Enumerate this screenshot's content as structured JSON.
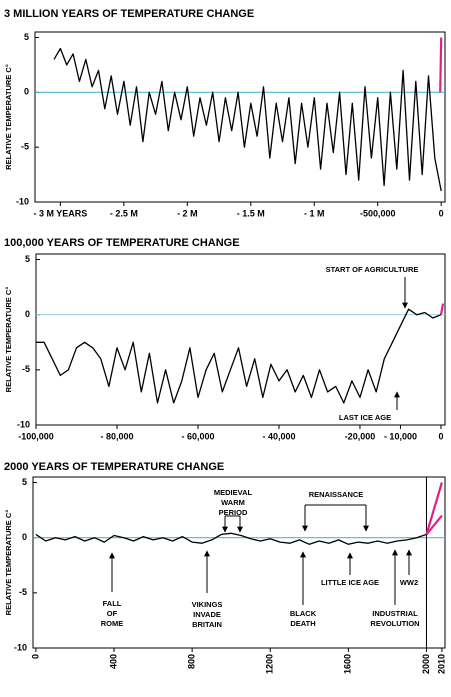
{
  "chart_data": [
    {
      "type": "line",
      "title": "3 MILLION YEARS OF TEMPERATURE CHANGE",
      "ylabel": "RELATIVE TEMPERATURE C°",
      "xlim": [
        -3200000,
        30000
      ],
      "ylim": [
        -10,
        5.5
      ],
      "yticks": [
        5,
        0,
        -5,
        -10
      ],
      "xticks": [
        {
          "value": -3000000,
          "label": "- 3 M YEARS"
        },
        {
          "value": -2500000,
          "label": "- 2.5 M"
        },
        {
          "value": -2000000,
          "label": "- 2 M"
        },
        {
          "value": -1500000,
          "label": "- 1.5 M"
        },
        {
          "value": -1000000,
          "label": "- 1 M"
        },
        {
          "value": -500000,
          "label": "-500,000"
        },
        0
      ],
      "reference_line": 0,
      "reference_color": "#5ab4d6",
      "series": [
        {
          "color": "#000000",
          "x": [
            -3050000,
            -3000000,
            -2950000,
            -2900000,
            -2850000,
            -2800000,
            -2750000,
            -2700000,
            -2650000,
            -2600000,
            -2550000,
            -2500000,
            -2450000,
            -2400000,
            -2350000,
            -2300000,
            -2250000,
            -2200000,
            -2150000,
            -2100000,
            -2050000,
            -2000000,
            -1950000,
            -1900000,
            -1850000,
            -1800000,
            -1750000,
            -1700000,
            -1650000,
            -1600000,
            -1550000,
            -1500000,
            -1450000,
            -1400000,
            -1350000,
            -1300000,
            -1250000,
            -1200000,
            -1150000,
            -1100000,
            -1050000,
            -1000000,
            -950000,
            -900000,
            -850000,
            -800000,
            -750000,
            -700000,
            -650000,
            -600000,
            -550000,
            -500000,
            -450000,
            -400000,
            -350000,
            -300000,
            -250000,
            -200000,
            -150000,
            -100000,
            -50000,
            0
          ],
          "values": [
            3,
            4,
            2.5,
            3.5,
            1,
            3,
            0.5,
            2,
            -1.5,
            1.5,
            -2,
            1,
            -3,
            0.5,
            -4.5,
            0,
            -2,
            1,
            -3.5,
            0,
            -2.5,
            0.5,
            -4,
            -0.5,
            -3,
            0,
            -4.5,
            -0.5,
            -3.5,
            0,
            -5,
            -1,
            -4,
            0.5,
            -6,
            -1,
            -4.5,
            -0.5,
            -6.5,
            -1,
            -5,
            -0.5,
            -7,
            -1,
            -5.5,
            0,
            -7.5,
            -1,
            -8,
            0.5,
            -6,
            -0.5,
            -8.5,
            0,
            -7,
            2,
            -8,
            1,
            -7.5,
            1.5,
            -6,
            -9
          ]
        },
        {
          "color": "#e0208a",
          "x": [
            -8000,
            0
          ],
          "values": [
            0,
            5
          ]
        }
      ]
    },
    {
      "type": "line",
      "title": "100,000 YEARS OF TEMPERATURE CHANGE",
      "ylabel": "RELATIVE TEMPERATURE C°",
      "xlim": [
        -100000,
        1000
      ],
      "ylim": [
        -10,
        5.5
      ],
      "yticks": [
        5,
        0,
        -5,
        -10
      ],
      "xticks": [
        {
          "value": -100000,
          "label": "-100,000"
        },
        {
          "value": -80000,
          "label": "- 80,000"
        },
        {
          "value": -60000,
          "label": "- 60,000"
        },
        {
          "value": -40000,
          "label": "- 40,000"
        },
        {
          "value": -20000,
          "label": "-20,000"
        },
        {
          "value": -10000,
          "label": "- 10,000"
        },
        0
      ],
      "reference_line": 0,
      "reference_color": "#9fd3e8",
      "annotations": [
        [
          "START OF AGRICULTURE"
        ],
        [
          "LAST ICE AGE"
        ]
      ],
      "series": [
        {
          "color": "#000000",
          "x": [
            -100000,
            -98000,
            -96000,
            -94000,
            -92000,
            -90000,
            -88000,
            -86000,
            -84000,
            -82000,
            -80000,
            -78000,
            -76000,
            -74000,
            -72000,
            -70000,
            -68000,
            -66000,
            -64000,
            -62000,
            -60000,
            -58000,
            -56000,
            -54000,
            -52000,
            -50000,
            -48000,
            -46000,
            -44000,
            -42000,
            -40000,
            -38000,
            -36000,
            -34000,
            -32000,
            -30000,
            -28000,
            -26000,
            -24000,
            -22000,
            -20000,
            -18000,
            -16000,
            -14000,
            -12000,
            -10000,
            -8000,
            -6000,
            -4000,
            -2000,
            0
          ],
          "values": [
            -2.5,
            -2.5,
            -4,
            -5.5,
            -5,
            -3,
            -2.5,
            -3,
            -4,
            -6.5,
            -3,
            -5,
            -2.5,
            -7,
            -3.5,
            -8,
            -5,
            -8,
            -6,
            -3,
            -7.5,
            -5,
            -3.5,
            -7,
            -5,
            -3,
            -6.5,
            -4,
            -7.5,
            -4.5,
            -6,
            -5,
            -7,
            -5.5,
            -7.5,
            -5,
            -7,
            -6.5,
            -8,
            -6,
            -7.5,
            -5,
            -7,
            -4,
            -2.5,
            -1,
            0.5,
            0,
            0.2,
            -0.3,
            0
          ]
        },
        {
          "color": "#e0208a",
          "x": [
            0,
            500
          ],
          "values": [
            0,
            1
          ]
        }
      ]
    },
    {
      "type": "line",
      "title": "2000 YEARS OF TEMPERATURE CHANGE",
      "ylabel": "RELATIVE TEMPERATURE C°",
      "xlim": [
        -15,
        2012
      ],
      "ylim": [
        -10,
        5.5
      ],
      "yticks": [
        5,
        0,
        -5,
        -10
      ],
      "xticks": [
        0,
        400,
        800,
        1200,
        1600,
        2000,
        2010
      ],
      "vline": 2000,
      "reference_line": 0,
      "reference_color": "#5ab4d6",
      "annotations": [
        [
          "MEDIEVAL",
          "WARM",
          "PERIOD"
        ],
        [
          "RENAISSANCE"
        ],
        [
          "FALL",
          "OF",
          "ROME"
        ],
        [
          "VIKINGS",
          "INVADE",
          "BRITAIN"
        ],
        [
          "BLACK",
          "DEATH"
        ],
        [
          "LITTLE ICE AGE"
        ],
        [
          "INDUSTRIAL",
          "REVOLUTION"
        ],
        [
          "WW2"
        ]
      ],
      "series": [
        {
          "color": "#000000",
          "x": [
            0,
            50,
            100,
            150,
            200,
            250,
            300,
            350,
            400,
            450,
            500,
            550,
            600,
            650,
            700,
            750,
            800,
            850,
            900,
            950,
            1000,
            1050,
            1100,
            1150,
            1200,
            1250,
            1300,
            1350,
            1400,
            1450,
            1500,
            1550,
            1600,
            1650,
            1700,
            1750,
            1800,
            1850,
            1900,
            1950,
            2000
          ],
          "values": [
            0.3,
            -0.3,
            0,
            -0.2,
            0.1,
            -0.3,
            0,
            -0.4,
            0.2,
            0,
            -0.3,
            0.1,
            -0.2,
            0,
            -0.3,
            0.1,
            -0.4,
            -0.5,
            -0.2,
            0.3,
            0.4,
            0.2,
            -0.1,
            -0.3,
            -0.1,
            -0.4,
            -0.5,
            -0.2,
            -0.6,
            -0.3,
            -0.5,
            -0.2,
            -0.6,
            -0.4,
            -0.5,
            -0.3,
            -0.5,
            -0.3,
            -0.2,
            0,
            0.3
          ]
        },
        {
          "color": "#e0208a",
          "x": [
            2000,
            2010
          ],
          "values": [
            0.3,
            5
          ]
        },
        {
          "color": "#e0208a",
          "x": [
            2000,
            2010
          ],
          "values": [
            0.3,
            2
          ]
        }
      ]
    }
  ]
}
